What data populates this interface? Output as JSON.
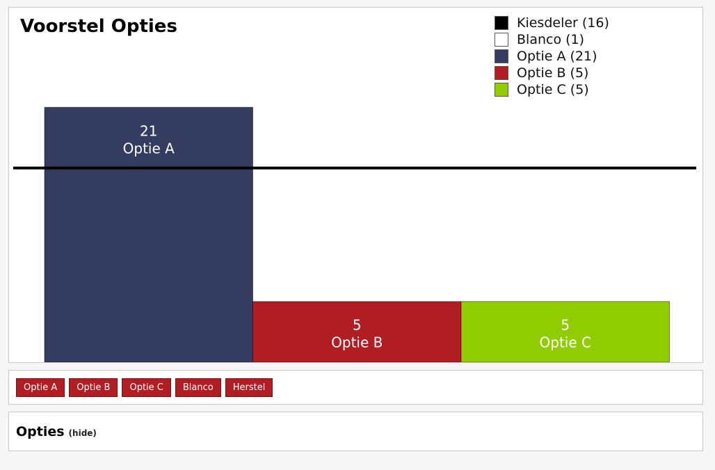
{
  "chart_data": {
    "type": "bar",
    "title": "Voorstel Opties",
    "categories": [
      "Optie A",
      "Optie B",
      "Optie C"
    ],
    "values": [
      21,
      5,
      5
    ],
    "colors": [
      "#343c60",
      "#b01e24",
      "#91cc00"
    ],
    "ylim": [
      0,
      26
    ],
    "threshold": {
      "name": "Kiesdeler",
      "value": 16,
      "color": "#000000"
    },
    "legend": [
      {
        "label": "Kiesdeler (16)",
        "color": "#000000"
      },
      {
        "label": "Blanco (1)",
        "color": "#ffffff"
      },
      {
        "label": "Optie A (21)",
        "color": "#343c60"
      },
      {
        "label": "Optie B (5)",
        "color": "#b01e24"
      },
      {
        "label": "Optie C (5)",
        "color": "#91cc00"
      }
    ],
    "legend_position": "top-right",
    "grid": false
  },
  "buttons": [
    "Optie A",
    "Optie B",
    "Optie C",
    "Blanco",
    "Herstel"
  ],
  "options_section": {
    "title": "Opties",
    "toggle_label": "(hide)"
  }
}
